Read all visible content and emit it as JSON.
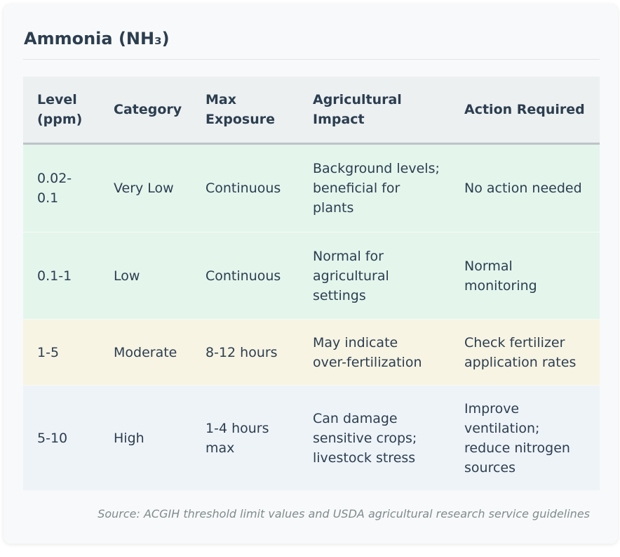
{
  "card": {
    "title": "Ammonia (NH₃)",
    "source": "Source: ACGIH threshold limit values and USDA agricultural research service guidelines"
  },
  "table": {
    "headers": [
      [
        "Level",
        "(ppm)"
      ],
      [
        "Category"
      ],
      [
        "Max",
        "Exposure"
      ],
      [
        "Agricultural",
        "Impact"
      ],
      [
        "Action Required"
      ]
    ],
    "rows": [
      {
        "level": [
          "0.02-",
          "0.1"
        ],
        "category": [
          "Very Low"
        ],
        "max_exposure": [
          "Continuous"
        ],
        "impact": [
          "Background levels;",
          "beneficial for",
          "plants"
        ],
        "action": [
          "No action needed"
        ],
        "row_color": "#e4f5ec"
      },
      {
        "level": [
          "0.1-1"
        ],
        "category": [
          "Low"
        ],
        "max_exposure": [
          "Continuous"
        ],
        "impact": [
          "Normal for",
          "agricultural",
          "settings"
        ],
        "action": [
          "Normal",
          "monitoring"
        ],
        "row_color": "#e4f5ec"
      },
      {
        "level": [
          "1-5"
        ],
        "category": [
          "Moderate"
        ],
        "max_exposure": [
          "8-12 hours"
        ],
        "impact": [
          "May indicate",
          "over-fertilization"
        ],
        "action": [
          "Check fertilizer",
          "application rates"
        ],
        "row_color": "#f7f4e4"
      },
      {
        "level": [
          "5-10"
        ],
        "category": [
          "High"
        ],
        "max_exposure": [
          "1-4 hours",
          "max"
        ],
        "impact": [
          "Can damage",
          "sensitive crops;",
          "livestock stress"
        ],
        "action": [
          "Improve",
          "ventilation;",
          "reduce nitrogen",
          "sources"
        ],
        "row_color": "#eef3f8"
      }
    ]
  },
  "colors": {
    "heading_text": "#2c3e50",
    "header_background": "#ecf0f1",
    "source_text": "#7f8c8d"
  }
}
